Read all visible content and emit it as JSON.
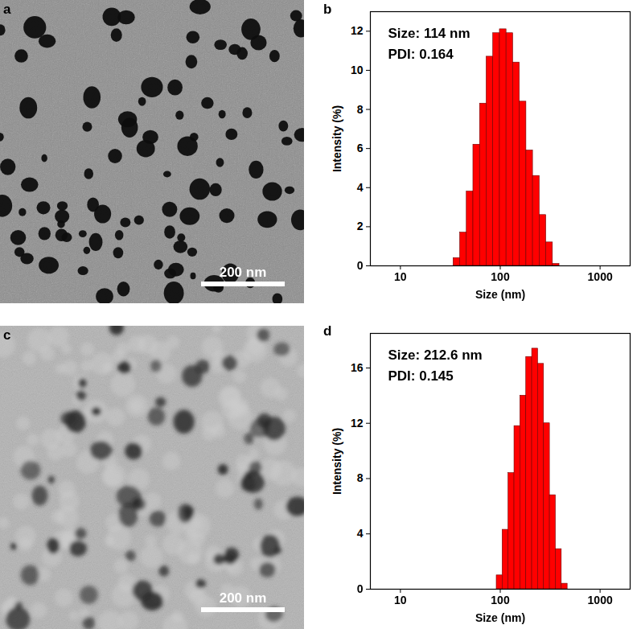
{
  "images": [
    {
      "label": "a",
      "scale_bar": "200 nm"
    },
    {
      "label": "c",
      "scale_bar": "200 nm"
    }
  ],
  "chart_data": [
    {
      "type": "histogram",
      "title": "b",
      "annotations": [
        "Size: 114 nm",
        "PDI: 0.164"
      ],
      "x_label": "Size (nm)",
      "y_label": "Intensity (%)",
      "bins": [
        34,
        39.6,
        46.1,
        53.7,
        62.6,
        72.9,
        84.9,
        99.0,
        115.3,
        134.3,
        156.5,
        182.3,
        212.4,
        247.4,
        288.2,
        335.8,
        391.2
      ],
      "values": [
        0.4,
        1.7,
        3.8,
        6.2,
        8.3,
        10.7,
        11.9,
        12.1,
        11.9,
        10.4,
        8.4,
        5.9,
        4.6,
        2.6,
        1.2,
        0.1
      ],
      "color": "#ff0000",
      "log": "x",
      "xlim": [
        5,
        2000
      ],
      "xticks": [
        10,
        100,
        1000
      ],
      "ylim": [
        0,
        13
      ],
      "yticks": [
        0,
        2,
        4,
        6,
        8,
        10,
        12
      ]
    },
    {
      "type": "histogram",
      "title": "d",
      "annotations": [
        "Size: 212.6 nm",
        "PDI: 0.145"
      ],
      "x_label": "Size (nm)",
      "y_label": "Intensity (%)",
      "bins": [
        92,
        105.4,
        120.8,
        138.5,
        158.7,
        181.8,
        208.4,
        238.8,
        273.7,
        313.6,
        359.4,
        411.9,
        472.0
      ],
      "values": [
        1.0,
        4.3,
        8.4,
        11.8,
        14.0,
        16.8,
        17.4,
        16.3,
        12.0,
        6.8,
        2.9,
        0.4
      ],
      "color": "#ff0000",
      "log": "x",
      "xlim": [
        5,
        2000
      ],
      "xticks": [
        10,
        100,
        1000
      ],
      "ylim": [
        0,
        18.5
      ],
      "yticks": [
        0,
        4,
        8,
        12,
        16
      ]
    }
  ]
}
